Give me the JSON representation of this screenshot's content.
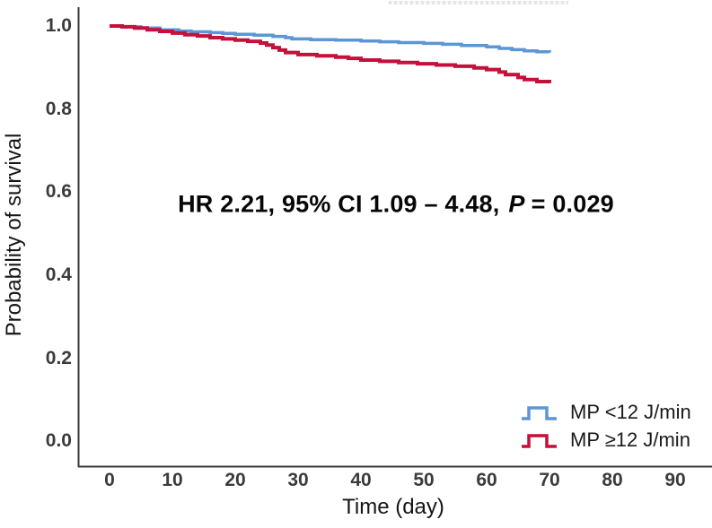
{
  "figure": {
    "y_axis_title": "Probability of survival",
    "x_axis_title": "Time (day)",
    "annotation": {
      "prefix": "HR 2.21, 95% CI 1.09 – 4.48,",
      "p_symbol": "P",
      "p_rest": "= 0.029"
    }
  },
  "legend": {
    "items": [
      {
        "label": "MP <12 J/min",
        "color": "#5c96d6"
      },
      {
        "label": "MP ≥12 J/min",
        "color": "#c4103a"
      }
    ]
  },
  "chart_data": {
    "type": "line",
    "subtype": "kaplan-meier-step-curves",
    "title": "",
    "xlabel": "Time (day)",
    "ylabel": "Probability of survival",
    "xlim": [
      0,
      95
    ],
    "ylim": [
      0.0,
      1.0
    ],
    "grid": false,
    "legend_position": "lower-right",
    "annotation": "HR 2.21, 95% CI 1.09 – 4.48, P = 0.029",
    "x_ticks": [
      "0",
      "10",
      "20",
      "30",
      "40",
      "50",
      "60",
      "70",
      "80",
      "90"
    ],
    "y_ticks": [
      "1.0",
      "0.8",
      "0.6",
      "0.4",
      "0.2",
      "0.0"
    ],
    "series": [
      {
        "name": "MP <12 J/min",
        "color": "#5c96d6",
        "stroke_width": 3.5,
        "points": [
          [
            0,
            1.0
          ],
          [
            2,
            0.998
          ],
          [
            5,
            0.995
          ],
          [
            8,
            0.991
          ],
          [
            11,
            0.988
          ],
          [
            13,
            0.986
          ],
          [
            16,
            0.984
          ],
          [
            18,
            0.982
          ],
          [
            20,
            0.98
          ],
          [
            23,
            0.978
          ],
          [
            26,
            0.975
          ],
          [
            28,
            0.972
          ],
          [
            29,
            0.969
          ],
          [
            32,
            0.967
          ],
          [
            36,
            0.966
          ],
          [
            40,
            0.964
          ],
          [
            43,
            0.962
          ],
          [
            46,
            0.96
          ],
          [
            50,
            0.958
          ],
          [
            53,
            0.956
          ],
          [
            56,
            0.953
          ],
          [
            60,
            0.95
          ],
          [
            62,
            0.946
          ],
          [
            64,
            0.943
          ],
          [
            66,
            0.94
          ],
          [
            68,
            0.938
          ],
          [
            70,
            0.936
          ]
        ]
      },
      {
        "name": "MP ≥12 J/min",
        "color": "#c4103a",
        "stroke_width": 4,
        "points": [
          [
            0,
            1.0
          ],
          [
            2,
            0.998
          ],
          [
            4,
            0.995
          ],
          [
            6,
            0.991
          ],
          [
            8,
            0.987
          ],
          [
            10,
            0.983
          ],
          [
            12,
            0.979
          ],
          [
            14,
            0.976
          ],
          [
            16,
            0.972
          ],
          [
            18,
            0.969
          ],
          [
            20,
            0.966
          ],
          [
            22,
            0.963
          ],
          [
            24,
            0.959
          ],
          [
            25,
            0.954
          ],
          [
            26,
            0.948
          ],
          [
            27,
            0.942
          ],
          [
            28,
            0.936
          ],
          [
            30,
            0.931
          ],
          [
            33,
            0.928
          ],
          [
            36,
            0.925
          ],
          [
            38,
            0.922
          ],
          [
            40,
            0.918
          ],
          [
            43,
            0.915
          ],
          [
            46,
            0.912
          ],
          [
            49,
            0.909
          ],
          [
            52,
            0.906
          ],
          [
            55,
            0.903
          ],
          [
            58,
            0.899
          ],
          [
            60,
            0.895
          ],
          [
            62,
            0.889
          ],
          [
            63,
            0.883
          ],
          [
            65,
            0.876
          ],
          [
            66,
            0.871
          ],
          [
            68,
            0.866
          ],
          [
            70,
            0.862
          ]
        ]
      }
    ]
  }
}
